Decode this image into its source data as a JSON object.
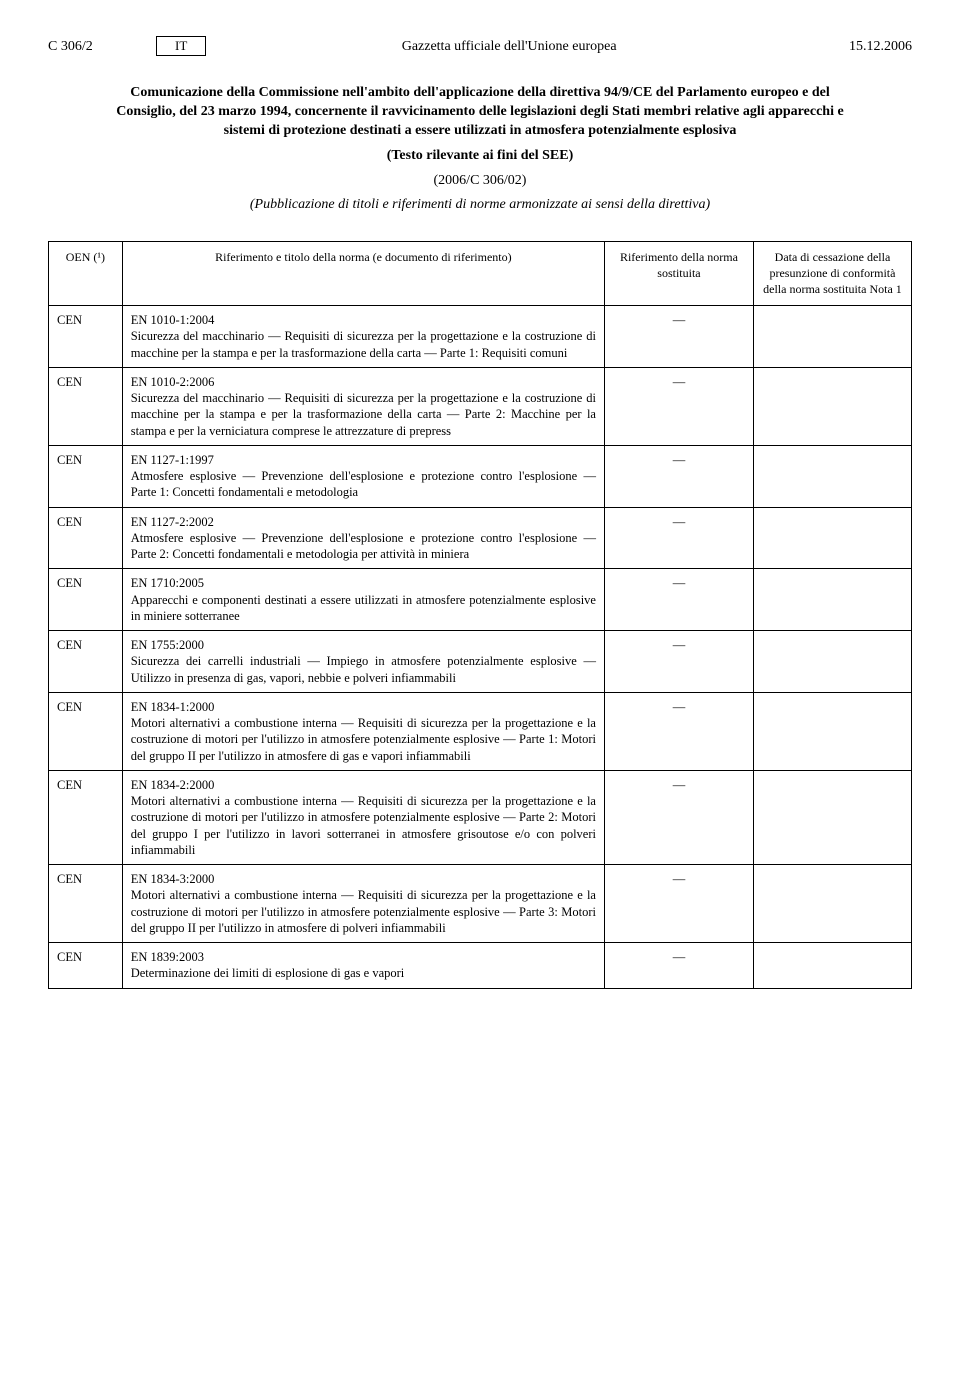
{
  "header": {
    "page_ref": "C 306/2",
    "lang": "IT",
    "journal": "Gazzetta ufficiale dell'Unione europea",
    "date": "15.12.2006"
  },
  "title": {
    "line1": "Comunicazione della Commissione nell'ambito dell'applicazione della direttiva 94/9/CE del Parlamento europeo e del Consiglio, del 23 marzo 1994, concernente il ravvicinamento delle legislazioni degli Stati membri relative agli apparecchi e sistemi di protezione destinati a essere utilizzati in atmosfera potenzialmente esplosiva",
    "line2": "(Testo rilevante ai fini del SEE)",
    "line3": "(2006/C 306/02)",
    "line4": "(Pubblicazione di titoli e riferimenti di norme armonizzate ai sensi della direttiva)"
  },
  "columns": {
    "oen": "OEN (¹)",
    "ref": "Riferimento e titolo della norma\n(e documento di riferimento)",
    "sub": "Riferimento della norma sostituita",
    "date": "Data di cessazione della presunzione di conformità della norma sostituita\nNota 1"
  },
  "rows": [
    {
      "oen": "CEN",
      "code": "EN 1010-1:2004",
      "desc": "Sicurezza del macchinario — Requisiti di sicurezza per la progettazione e la costruzione di macchine per la stampa e per la trasformazione della carta — Parte 1: Requisiti comuni",
      "sub": "—",
      "date": ""
    },
    {
      "oen": "CEN",
      "code": "EN 1010-2:2006",
      "desc": "Sicurezza del macchinario — Requisiti di sicurezza per la progettazione e la costruzione di macchine per la stampa e per la trasformazione della carta — Parte 2: Macchine per la stampa e per la verniciatura comprese le attrezzature di prepress",
      "sub": "—",
      "date": ""
    },
    {
      "oen": "CEN",
      "code": "EN 1127-1:1997",
      "desc": "Atmosfere esplosive — Prevenzione dell'esplosione e protezione contro l'esplosione — Parte 1: Concetti fondamentali e metodologia",
      "sub": "—",
      "date": ""
    },
    {
      "oen": "CEN",
      "code": "EN 1127-2:2002",
      "desc": "Atmosfere esplosive — Prevenzione dell'esplosione e protezione contro l'esplosione — Parte 2: Concetti fondamentali e metodologia per attività in miniera",
      "sub": "—",
      "date": ""
    },
    {
      "oen": "CEN",
      "code": "EN 1710:2005",
      "desc": "Apparecchi e componenti destinati a essere utilizzati in atmosfere potenzialmente esplosive in miniere sotterranee",
      "sub": "—",
      "date": ""
    },
    {
      "oen": "CEN",
      "code": "EN 1755:2000",
      "desc": "Sicurezza dei carrelli industriali — Impiego in atmosfere potenzialmente esplosive — Utilizzo in presenza di gas, vapori, nebbie e polveri infiammabili",
      "sub": "—",
      "date": ""
    },
    {
      "oen": "CEN",
      "code": "EN 1834-1:2000",
      "desc": "Motori alternativi a combustione interna — Requisiti di sicurezza per la progettazione e la costruzione di motori per l'utilizzo in atmosfere potenzialmente esplosive — Parte 1: Motori del gruppo II per l'utilizzo in atmosfere di gas e vapori infiammabili",
      "sub": "—",
      "date": ""
    },
    {
      "oen": "CEN",
      "code": "EN 1834-2:2000",
      "desc": "Motori alternativi a combustione interna — Requisiti di sicurezza per la progettazione e la costruzione di motori per l'utilizzo in atmosfere potenzialmente esplosive — Parte 2: Motori del gruppo I per l'utilizzo in lavori sotterranei in atmosfere grisoutose e/o con polveri infiammabili",
      "sub": "—",
      "date": ""
    },
    {
      "oen": "CEN",
      "code": "EN 1834-3:2000",
      "desc": "Motori alternativi a combustione interna — Requisiti di sicurezza per la progettazione e la costruzione di motori per l'utilizzo in atmosfere potenzialmente esplosive — Parte 3: Motori del gruppo II per l'utilizzo in atmosfere di polveri infiammabili",
      "sub": "—",
      "date": ""
    },
    {
      "oen": "CEN",
      "code": "EN 1839:2003",
      "desc": "Determinazione dei limiti di esplosione di gas e vapori",
      "sub": "—",
      "date": ""
    }
  ]
}
